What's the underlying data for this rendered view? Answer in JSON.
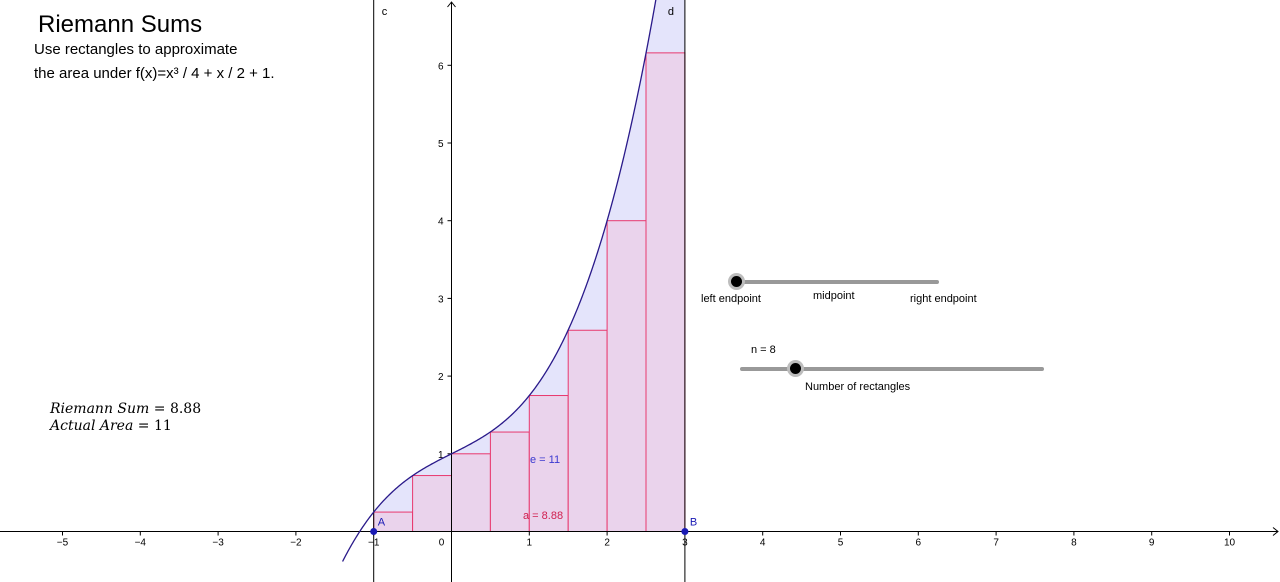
{
  "header": {
    "title": "Riemann Sums",
    "line1": "Use rectangles to approximate",
    "line2": "the area under f(x)=x³ / 4 + x / 2 + 1."
  },
  "results": {
    "riemann_label": "Riemann Sum",
    "riemann_value": "8.88",
    "actual_label": "Actual Area",
    "actual_value": "11"
  },
  "graph_labels": {
    "line_c": "c",
    "line_d": "d",
    "point_a": "A",
    "point_b": "B",
    "e_label": "e = 11",
    "a_label": "a = 8.88"
  },
  "method_slider": {
    "left": "left endpoint",
    "mid": "midpoint",
    "right": "right endpoint",
    "value": 0
  },
  "n_slider": {
    "label": "n = 8",
    "caption": "Number of rectangles",
    "value": 8,
    "min": 1,
    "max": 50
  },
  "chart_data": {
    "type": "area",
    "function": "x^3/4 + x/2 + 1",
    "xlim": [
      -5.8,
      10.6
    ],
    "ylim": [
      -0.6,
      6.8
    ],
    "x_ticks": [
      "−5",
      "−4",
      "−3",
      "−2",
      "−1",
      "0",
      "1",
      "2",
      "3",
      "4",
      "5",
      "6",
      "7",
      "8",
      "9",
      "10"
    ],
    "y_ticks": [
      "1",
      "2",
      "3",
      "4",
      "5",
      "6"
    ],
    "interval": [
      -1,
      3
    ],
    "n": 8,
    "rectangles": [
      {
        "x0": -1,
        "x1": -0.5,
        "h": 0.25
      },
      {
        "x0": -0.5,
        "x1": 0,
        "h": 0.72
      },
      {
        "x0": 0,
        "x1": 0.5,
        "h": 1.0
      },
      {
        "x0": 0.5,
        "x1": 1,
        "h": 1.28
      },
      {
        "x0": 1,
        "x1": 1.5,
        "h": 1.75
      },
      {
        "x0": 1.5,
        "x1": 2,
        "h": 2.59
      },
      {
        "x0": 2,
        "x1": 2.5,
        "h": 4.0
      },
      {
        "x0": 2.5,
        "x1": 3,
        "h": 6.16
      }
    ],
    "colors": {
      "curve": "#2a1a8a",
      "area_fill": "#e4e4fb",
      "rect_fill": "#ead3ec",
      "rect_stroke": "#e8386e",
      "point": "#1a1ab4",
      "e_label": "#3a38d0",
      "a_label": "#d02050"
    }
  }
}
